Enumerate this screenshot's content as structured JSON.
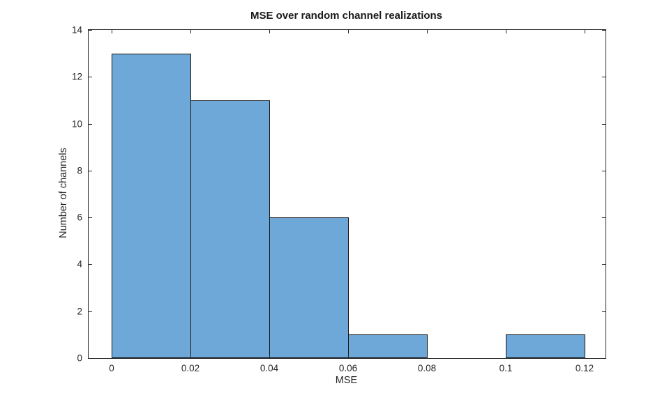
{
  "figure": {
    "background": "#ffffff"
  },
  "chart_data": {
    "type": "bar",
    "subtype": "histogram",
    "title": "MSE over random channel realizations",
    "xlabel": "MSE",
    "ylabel": "Number of channels",
    "bin_edges": [
      0,
      0.02,
      0.04,
      0.06,
      0.08,
      0.1,
      0.12
    ],
    "counts": [
      13,
      11,
      6,
      1,
      0,
      1
    ],
    "xlim": [
      -0.00584,
      0.1253
    ],
    "ylim": [
      0,
      14
    ],
    "xticks": [
      0,
      0.02,
      0.04,
      0.06,
      0.08,
      0.1,
      0.12
    ],
    "xtick_labels": [
      "0",
      "0.02",
      "0.04",
      "0.06",
      "0.08",
      "0.1",
      "0.12"
    ],
    "yticks": [
      0,
      2,
      4,
      6,
      8,
      10,
      12,
      14
    ],
    "ytick_labels": [
      "0",
      "2",
      "4",
      "6",
      "8",
      "10",
      "12",
      "14"
    ],
    "grid": false,
    "legend": null,
    "bar_face_color": "#6EA8D8",
    "bar_edge_color": "#151515",
    "axis_color": "#262626",
    "tick_direction": "in",
    "box": true
  }
}
